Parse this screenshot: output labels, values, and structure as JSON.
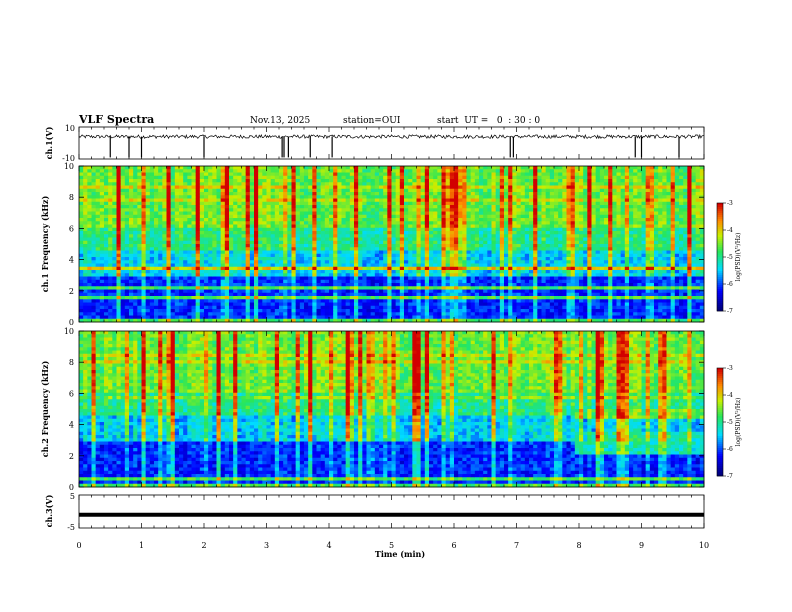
{
  "header": {
    "title": "VLF Spectra",
    "date": "Nov.13, 2025",
    "station": "station=OUI",
    "start_ut": "start  UT =   0  : 30 : 0"
  },
  "chart_data": [
    {
      "type": "line",
      "id": "ch1-waveform",
      "ylabel": "ch.1(V)",
      "ylim": [
        -10,
        10
      ],
      "yticks": [
        10,
        -10
      ],
      "description": "time series, baseline near 4 V with sparse negative spikes",
      "baseline": 4,
      "spike_times_min": [
        0.5,
        0.8,
        1.0,
        2.0,
        3.25,
        3.28,
        3.35,
        3.7,
        4.05,
        6.9,
        6.95,
        8.9,
        9.0,
        9.6
      ]
    },
    {
      "type": "heatmap",
      "id": "ch1-spectrogram",
      "ylabel": "ch.1\nFrequency (kHz)",
      "ylim": [
        0,
        10
      ],
      "yticks": [
        0,
        2,
        4,
        6,
        8,
        10
      ],
      "colorbar": {
        "label": "log(PSD)(V²/Hz)",
        "range": [
          -7,
          -3
        ],
        "ticks": [
          -3,
          -4,
          -5,
          -6,
          -7
        ]
      }
    },
    {
      "type": "heatmap",
      "id": "ch2-spectrogram",
      "ylabel": "ch.2\nFrequency (kHz)",
      "ylim": [
        0,
        10
      ],
      "yticks": [
        0,
        2,
        4,
        6,
        8,
        10
      ],
      "colorbar": {
        "label": "log(PSD)(V²/Hz)",
        "range": [
          -7,
          -3
        ],
        "ticks": [
          -3,
          -4,
          -5,
          -6,
          -7
        ]
      }
    },
    {
      "type": "line",
      "id": "ch3-waveform",
      "ylabel": "ch.3(V)",
      "ylim": [
        -5,
        5
      ],
      "yticks": [
        5,
        0,
        -5
      ],
      "constant_value": -1
    }
  ],
  "x_axis": {
    "label": "Time (min)",
    "xlim": [
      0,
      10
    ],
    "ticks": [
      0,
      1,
      2,
      3,
      4,
      5,
      6,
      7,
      8,
      9,
      10
    ]
  }
}
